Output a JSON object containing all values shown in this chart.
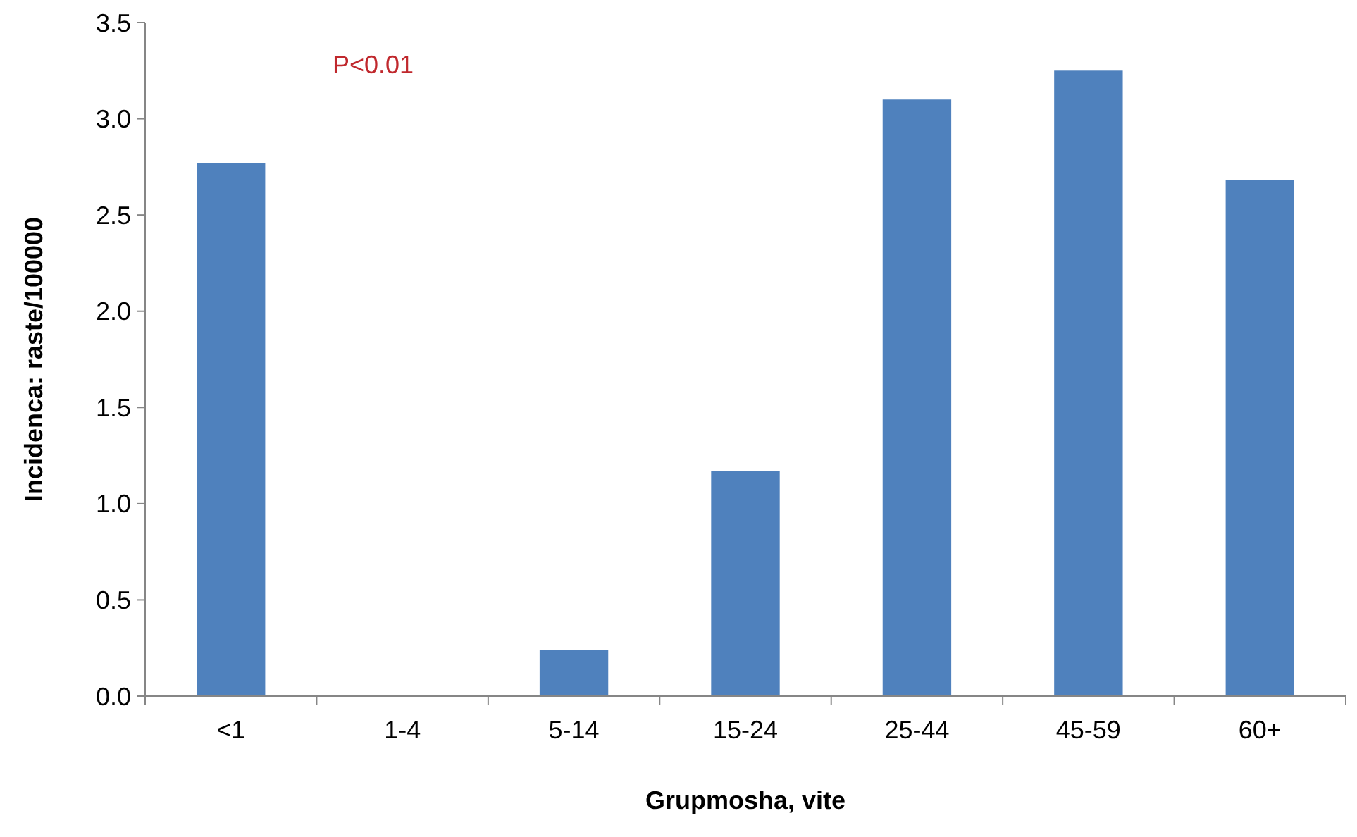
{
  "chart_data": {
    "type": "bar",
    "xlabel": "Grupmosha, vite",
    "ylabel": "Incidenca: raste/100000",
    "categories": [
      "<1",
      "1-4",
      "5-14",
      "15-24",
      "25-44",
      "45-59",
      "60+"
    ],
    "values": [
      2.77,
      0,
      0.24,
      1.17,
      3.1,
      3.25,
      2.68
    ],
    "color": "#4f81bd",
    "ylim": [
      0,
      3.5
    ],
    "yticks": [
      {
        "value": 0,
        "label": "0.0"
      },
      {
        "value": 0.5,
        "label": "0.5"
      },
      {
        "value": 1,
        "label": "1.0"
      },
      {
        "value": 1.5,
        "label": "1.5"
      },
      {
        "value": 2,
        "label": "2.0"
      },
      {
        "value": 2.5,
        "label": "2.5"
      },
      {
        "value": 3,
        "label": "3.0"
      },
      {
        "value": 3.5,
        "label": "3.5"
      }
    ],
    "annotations": [
      "P<0.01"
    ],
    "grid": false
  }
}
